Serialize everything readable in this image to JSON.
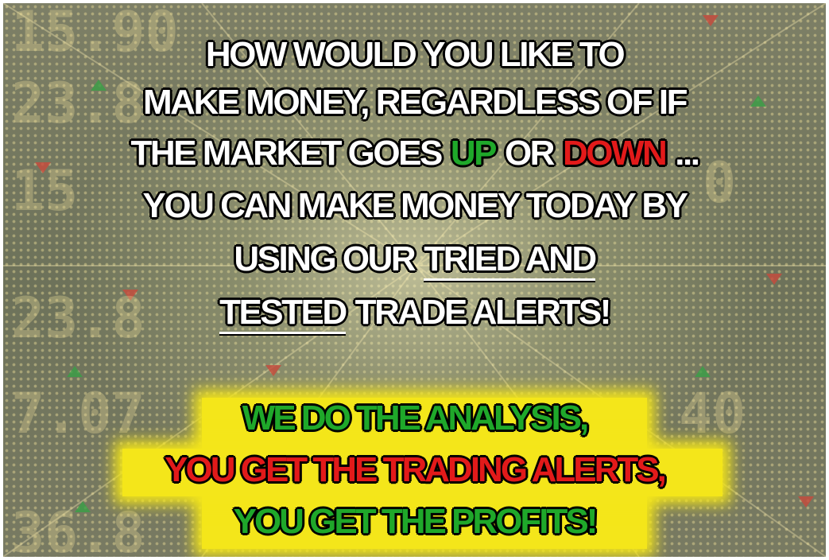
{
  "headline": {
    "lines": [
      [
        "HOW WOULD YOU LIKE TO"
      ],
      [
        "MAKE MONEY, REGARDLESS OF IF"
      ],
      [
        "THE MARKET GOES",
        "UP",
        "OR",
        "DOWN",
        "..."
      ],
      [
        "YOU CAN MAKE MONEY TODAY BY"
      ],
      [
        "USING OUR",
        "TRIED AND"
      ],
      [
        "TESTED",
        "TRADE ALERTS!"
      ]
    ]
  },
  "callout": {
    "lines": [
      "WE DO THE ANALYSIS,",
      "YOU GET THE TRADING ALERTS,",
      "YOU GET THE PROFITS!"
    ]
  }
}
